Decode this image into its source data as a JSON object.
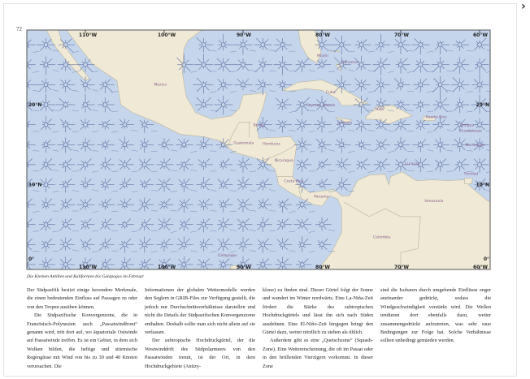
{
  "navigation": {
    "next_icon": "chevron-right-icon",
    "next_glyph": "›"
  },
  "page_number": "72",
  "map": {
    "colors": {
      "sea": "#c5d6ec",
      "land": "#efe9d6",
      "border": "#b9b39c",
      "wind": "#5b6b9f"
    },
    "longitude_labels": [
      "110°W",
      "100°W",
      "90°W",
      "80°W",
      "70°W",
      "60°W"
    ],
    "latitude_labels": [
      "20°N",
      "10°N",
      "0°"
    ],
    "places": [
      "Mexico",
      "Guatemala",
      "Belize",
      "Honduras",
      "Nicaragua",
      "Costa Rica",
      "Panama",
      "Colombia",
      "Venezuela",
      "Cuba",
      "Bahamas",
      "Miami",
      "Haiti",
      "Jamaica",
      "Cayman Islands",
      "Puerto Rico",
      "Antigua",
      "Guadeloupe",
      "Martinique",
      "Curaçao",
      "Trinidad",
      "Galapagos"
    ]
  },
  "caption": "Die Kleinen Antillen und Kalifornien bis Galapagos im Februar",
  "columns": [
    [
      "Der Südpazifik besitzt einige besondere Merkmale, die einen bedeutenden Einfluss auf Passagen zu oder von den Tropen ausüben können.",
      "Die Südpazifische Konvergenzone, die in Französisch-Polynesien auch „Passatwindfront“ genannt wird, tritt dort auf, wo äquatoriale Ostwinde auf Passatwinde treffen. Es ist ein Gebiet, in dem sich Wolken bilden, die heftige und stürmische Regengüsse mit Wind von bis zu 30 und 40 Knoten verursachen. Die"
    ],
    [
      "Informationen der globalen Wettermodelle werden den Seglern in GRIB-Files zur Verfügung gestellt, die jedoch nur Durchschnittsverhältnisse darstellen und nicht die Details der Südpazifischen Konvergenzzone enthalten. Deshalb sollte man sich nicht allein auf sie verlassen.",
      "Der subtropische Hochdruckgürtel, der die Westwinddrift des Südpolarmeers von den Passatwinden trennt, ist der Ort, in dem Hochdruckgebiete (Antizy-"
    ],
    [
      "klone) zu finden sind. Dieser Gürtel folgt der Sonne und wandert im Winter nordwärts. Eine La-Niña-Zeit fördert die Stärke des subtropischen Hochdruckgürtels und lässt ihn sich nach Süden ausdehnen. Eine El-Niño-Zeit hingegen bringt den Gürtel dazu, weiter nördlich zu stehen als üblich.",
      "Außerdem gibt es eine „Quetschzone“ (Squash-Zone). Eine Wettererscheinung, die oft im Passat oder in den brüllenden Vierzigern vorkommt. In dieser Zone"
    ],
    [
      "sind die Isobaren durch umgebende Einflüsse enger aneinander gedrückt, sodass die Windgeschwindigkeit verstärkt wird. Die Wellen tendieren dort ebenfalls dazu, weiter zusammengedrückt aufzutreten, was sehr raue Bedingungen zur Folge hat. Solche Verhältnisse sollten unbedingt gemieden werden."
    ]
  ]
}
